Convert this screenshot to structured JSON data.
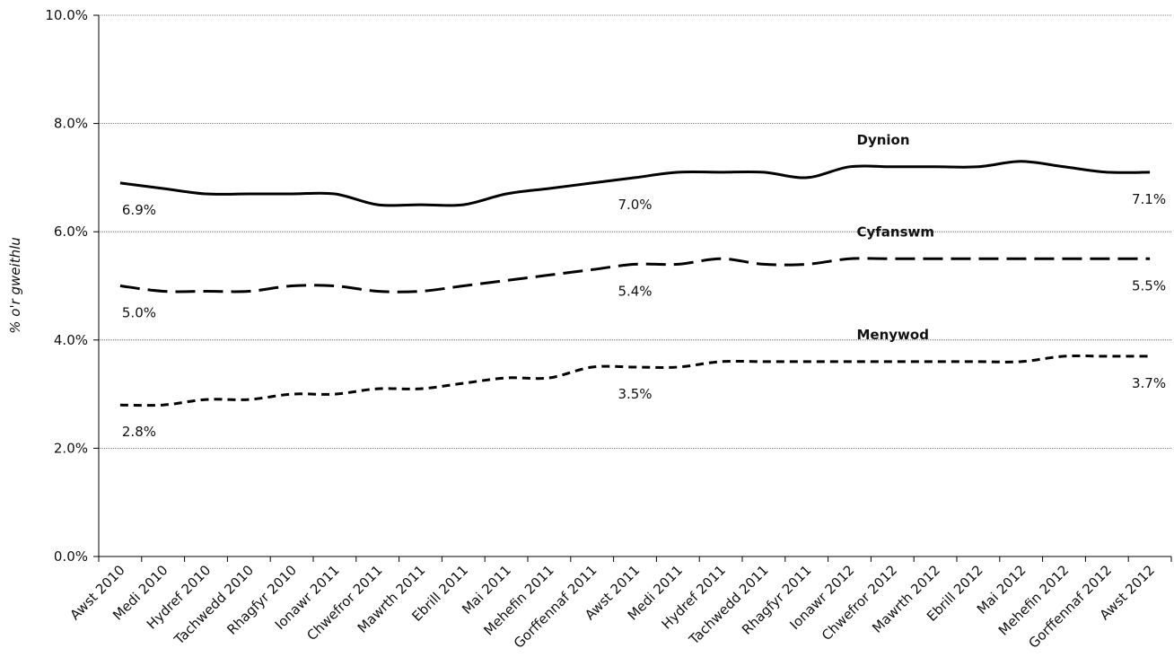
{
  "chart_data": {
    "type": "line",
    "title": "",
    "xlabel": "",
    "ylabel": "% o'r gweithlu",
    "ylim": [
      0,
      10
    ],
    "yticks": [
      "0.0%",
      "2.0%",
      "4.0%",
      "6.0%",
      "8.0%",
      "10.0%"
    ],
    "grid": "horizontal",
    "categories": [
      "Awst 2010",
      "Medi 2010",
      "Hydref 2010",
      "Tachwedd 2010",
      "Rhagfyr 2010",
      "Ionawr 2011",
      "Chwefror 2011",
      "Mawrth 2011",
      "Ebrill 2011",
      "Mai 2011",
      "Mehefin 2011",
      "Gorffennaf 2011",
      "Awst 2011",
      "Medi 2011",
      "Hydref 2011",
      "Tachwedd 2011",
      "Rhagfyr 2011",
      "Ionawr 2012",
      "Chwefror 2012",
      "Mawrth 2012",
      "Ebrill 2012",
      "Mai 2012",
      "Mehefin 2012",
      "Gorffennaf 2012",
      "Awst 2012"
    ],
    "series": [
      {
        "name": "Dynion",
        "line_style": "solid",
        "values": [
          6.9,
          6.8,
          6.7,
          6.7,
          6.7,
          6.7,
          6.5,
          6.5,
          6.5,
          6.7,
          6.8,
          6.9,
          7.0,
          7.1,
          7.1,
          7.1,
          7.0,
          7.2,
          7.2,
          7.2,
          7.2,
          7.3,
          7.2,
          7.1,
          7.1
        ],
        "data_labels": [
          {
            "index": 0,
            "text": "6.9%"
          },
          {
            "index": 12,
            "text": "7.0%"
          },
          {
            "index": 24,
            "text": "7.1%"
          }
        ]
      },
      {
        "name": "Cyfanswm",
        "line_style": "long-dash",
        "values": [
          5.0,
          4.9,
          4.9,
          4.9,
          5.0,
          5.0,
          4.9,
          4.9,
          5.0,
          5.1,
          5.2,
          5.3,
          5.4,
          5.4,
          5.5,
          5.4,
          5.4,
          5.5,
          5.5,
          5.5,
          5.5,
          5.5,
          5.5,
          5.5,
          5.5
        ],
        "data_labels": [
          {
            "index": 0,
            "text": "5.0%"
          },
          {
            "index": 12,
            "text": "5.4%"
          },
          {
            "index": 24,
            "text": "5.5%"
          }
        ]
      },
      {
        "name": "Menywod",
        "line_style": "short-dash",
        "values": [
          2.8,
          2.8,
          2.9,
          2.9,
          3.0,
          3.0,
          3.1,
          3.1,
          3.2,
          3.3,
          3.3,
          3.5,
          3.5,
          3.5,
          3.6,
          3.6,
          3.6,
          3.6,
          3.6,
          3.6,
          3.6,
          3.6,
          3.7,
          3.7,
          3.7
        ],
        "data_labels": [
          {
            "index": 0,
            "text": "2.8%"
          },
          {
            "index": 12,
            "text": "3.5%"
          },
          {
            "index": 24,
            "text": "3.7%"
          }
        ]
      }
    ]
  }
}
